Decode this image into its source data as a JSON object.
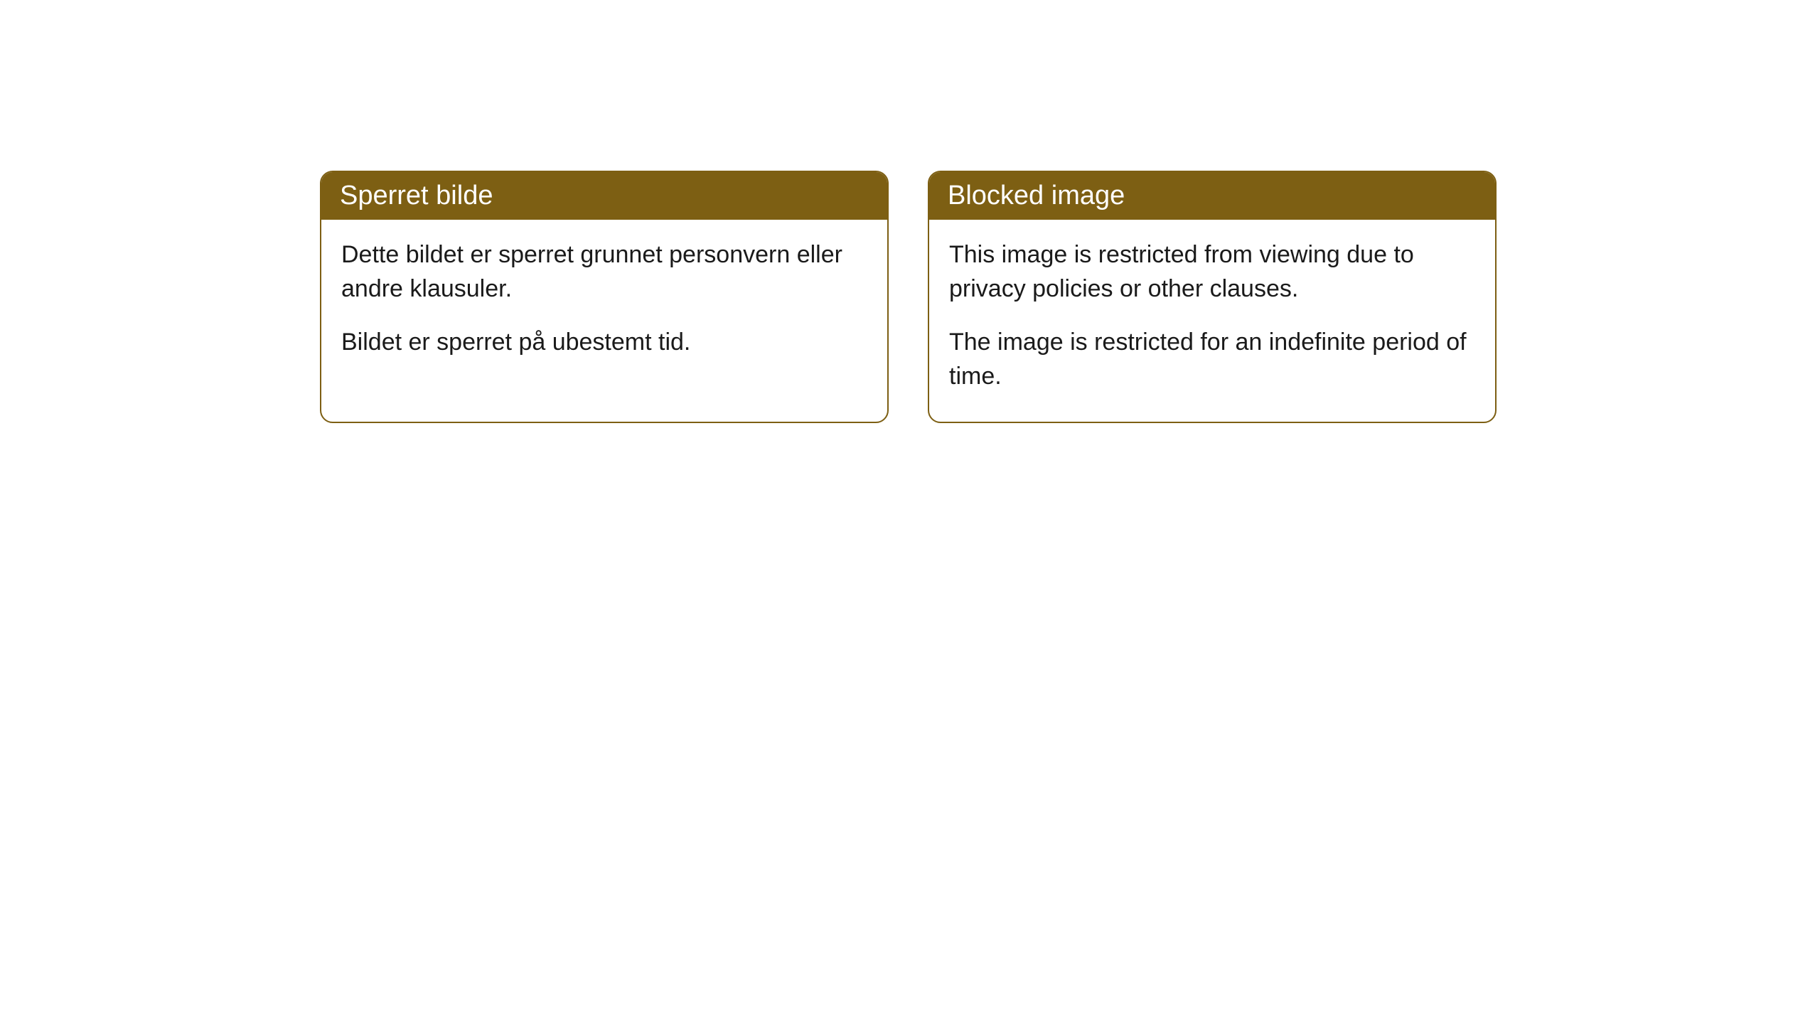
{
  "cards": [
    {
      "title": "Sperret bilde",
      "paragraph1": "Dette bildet er sperret grunnet personvern eller andre klausuler.",
      "paragraph2": "Bildet er sperret på ubestemt tid."
    },
    {
      "title": "Blocked image",
      "paragraph1": "This image is restricted from viewing due to privacy policies or other clauses.",
      "paragraph2": "The image is restricted for an indefinite period of time."
    }
  ],
  "styling": {
    "header_bg_color": "#7d5f13",
    "header_text_color": "#ffffff",
    "border_color": "#7d5f13",
    "body_bg_color": "#ffffff",
    "body_text_color": "#1a1a1a",
    "border_radius": 18,
    "header_fontsize": 38,
    "body_fontsize": 34
  }
}
